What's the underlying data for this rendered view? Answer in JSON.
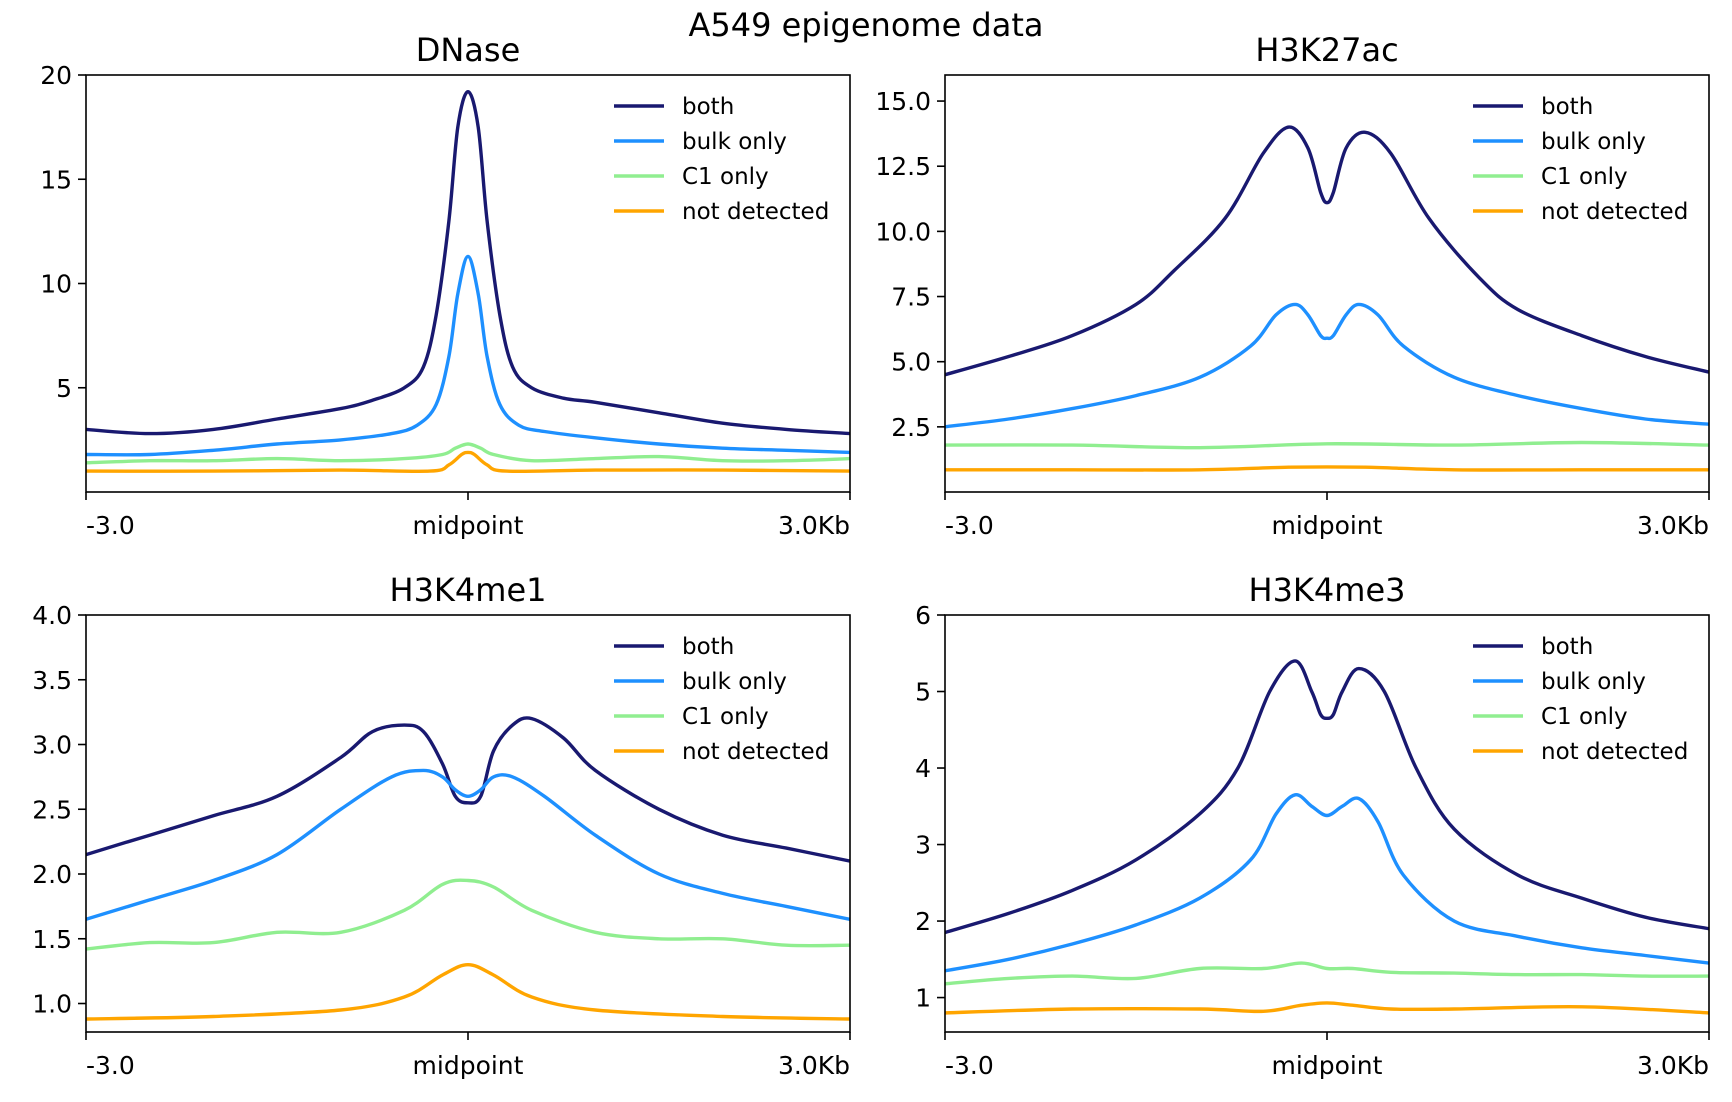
{
  "figure_title": "A549 epigenome data",
  "colors": {
    "both": "#191970",
    "bulk_only": "#1e90ff",
    "c1_only": "#90ee90",
    "not_detected": "#ffa500"
  },
  "chart_data": [
    {
      "type": "line",
      "title": "DNase",
      "xlabel": "",
      "ylabel": "",
      "xlim": [
        -3.0,
        3.0
      ],
      "ylim": [
        0,
        20
      ],
      "yticks": [
        5,
        10,
        15,
        20
      ],
      "ytick_labels": [
        "5",
        "10",
        "15",
        "20"
      ],
      "xticks": [
        -3.0,
        0,
        3.0
      ],
      "xtick_labels": [
        "-3.0",
        "midpoint",
        "3.0Kb"
      ],
      "grid": false,
      "legend_position": "top-right",
      "series": [
        {
          "name": "both",
          "color": "#191970",
          "x": [
            -3.0,
            -2.5,
            -2.0,
            -1.5,
            -1.0,
            -0.75,
            -0.5,
            -0.35,
            -0.25,
            -0.15,
            -0.08,
            0.0,
            0.08,
            0.15,
            0.25,
            0.35,
            0.5,
            0.75,
            1.0,
            1.5,
            2.0,
            2.5,
            3.0
          ],
          "y": [
            3.0,
            2.8,
            3.0,
            3.5,
            4.0,
            4.4,
            5.0,
            6.0,
            8.5,
            13.0,
            17.5,
            19.2,
            17.5,
            13.0,
            8.5,
            6.0,
            5.0,
            4.5,
            4.3,
            3.8,
            3.3,
            3.0,
            2.8
          ]
        },
        {
          "name": "bulk only",
          "color": "#1e90ff",
          "x": [
            -3.0,
            -2.5,
            -2.0,
            -1.5,
            -1.0,
            -0.6,
            -0.4,
            -0.25,
            -0.15,
            -0.08,
            0.0,
            0.08,
            0.15,
            0.25,
            0.4,
            0.6,
            1.0,
            1.5,
            2.0,
            2.5,
            3.0
          ],
          "y": [
            1.8,
            1.8,
            2.0,
            2.3,
            2.5,
            2.8,
            3.2,
            4.2,
            6.5,
            9.5,
            11.3,
            9.5,
            6.5,
            4.2,
            3.2,
            2.9,
            2.6,
            2.3,
            2.1,
            2.0,
            1.9
          ]
        },
        {
          "name": "C1 only",
          "color": "#90ee90",
          "x": [
            -3.0,
            -2.5,
            -2.0,
            -1.5,
            -1.0,
            -0.5,
            -0.2,
            -0.1,
            0.0,
            0.1,
            0.2,
            0.5,
            1.0,
            1.5,
            2.0,
            2.5,
            3.0
          ],
          "y": [
            1.4,
            1.5,
            1.5,
            1.6,
            1.5,
            1.6,
            1.8,
            2.1,
            2.3,
            2.1,
            1.8,
            1.5,
            1.6,
            1.7,
            1.5,
            1.5,
            1.6
          ]
        },
        {
          "name": "not detected",
          "color": "#ffa500",
          "x": [
            -3.0,
            -2.0,
            -1.0,
            -0.3,
            -0.15,
            -0.05,
            0.0,
            0.05,
            0.15,
            0.3,
            1.0,
            2.0,
            3.0
          ],
          "y": [
            1.0,
            1.0,
            1.05,
            1.0,
            1.3,
            1.8,
            1.9,
            1.8,
            1.3,
            1.0,
            1.05,
            1.05,
            1.0
          ]
        }
      ]
    },
    {
      "type": "line",
      "title": "H3K27ac",
      "xlabel": "",
      "ylabel": "",
      "xlim": [
        -3.0,
        3.0
      ],
      "ylim": [
        0,
        16.0
      ],
      "yticks": [
        2.5,
        5.0,
        7.5,
        10.0,
        12.5,
        15.0
      ],
      "ytick_labels": [
        "2.5",
        "5.0",
        "7.5",
        "10.0",
        "12.5",
        "15.0"
      ],
      "xticks": [
        -3.0,
        0,
        3.0
      ],
      "xtick_labels": [
        "-3.0",
        "midpoint",
        "3.0Kb"
      ],
      "grid": false,
      "legend_position": "top-right",
      "series": [
        {
          "name": "both",
          "color": "#191970",
          "x": [
            -3.0,
            -2.5,
            -2.0,
            -1.5,
            -1.2,
            -0.8,
            -0.5,
            -0.3,
            -0.15,
            -0.05,
            0.0,
            0.05,
            0.15,
            0.3,
            0.5,
            0.8,
            1.2,
            1.5,
            2.0,
            2.5,
            3.0
          ],
          "y": [
            4.5,
            5.2,
            6.0,
            7.2,
            8.5,
            10.5,
            13.0,
            14.0,
            13.2,
            11.5,
            11.1,
            11.5,
            13.2,
            13.8,
            13.0,
            10.5,
            8.2,
            7.0,
            6.0,
            5.2,
            4.6
          ]
        },
        {
          "name": "bulk only",
          "color": "#1e90ff",
          "x": [
            -3.0,
            -2.5,
            -2.0,
            -1.5,
            -1.0,
            -0.6,
            -0.4,
            -0.25,
            -0.15,
            -0.05,
            0.0,
            0.05,
            0.15,
            0.25,
            0.4,
            0.6,
            1.0,
            1.5,
            2.0,
            2.5,
            3.0
          ],
          "y": [
            2.5,
            2.8,
            3.2,
            3.7,
            4.4,
            5.6,
            6.8,
            7.2,
            6.8,
            6.0,
            5.9,
            6.0,
            6.8,
            7.2,
            6.8,
            5.6,
            4.4,
            3.7,
            3.2,
            2.8,
            2.6
          ]
        },
        {
          "name": "C1 only",
          "color": "#90ee90",
          "x": [
            -3.0,
            -2.0,
            -1.0,
            0.0,
            1.0,
            2.0,
            3.0
          ],
          "y": [
            1.8,
            1.8,
            1.7,
            1.85,
            1.8,
            1.9,
            1.8
          ]
        },
        {
          "name": "not detected",
          "color": "#ffa500",
          "x": [
            -3.0,
            -2.0,
            -1.0,
            -0.3,
            0.3,
            1.0,
            2.0,
            3.0
          ],
          "y": [
            0.85,
            0.85,
            0.85,
            0.95,
            0.95,
            0.85,
            0.85,
            0.85
          ]
        }
      ]
    },
    {
      "type": "line",
      "title": "H3K4me1",
      "xlabel": "",
      "ylabel": "",
      "xlim": [
        -3.0,
        3.0
      ],
      "ylim": [
        0.78,
        4.0
      ],
      "yticks": [
        1.0,
        1.5,
        2.0,
        2.5,
        3.0,
        3.5,
        4.0
      ],
      "ytick_labels": [
        "1.0",
        "1.5",
        "2.0",
        "2.5",
        "3.0",
        "3.5",
        "4.0"
      ],
      "xticks": [
        -3.0,
        0,
        3.0
      ],
      "xtick_labels": [
        "-3.0",
        "midpoint",
        "3.0Kb"
      ],
      "grid": false,
      "legend_position": "top-right",
      "series": [
        {
          "name": "both",
          "color": "#191970",
          "x": [
            -3.0,
            -2.5,
            -2.0,
            -1.5,
            -1.0,
            -0.75,
            -0.5,
            -0.35,
            -0.2,
            -0.1,
            0.0,
            0.1,
            0.2,
            0.35,
            0.5,
            0.75,
            1.0,
            1.5,
            2.0,
            2.5,
            3.0
          ],
          "y": [
            2.15,
            2.3,
            2.45,
            2.6,
            2.9,
            3.1,
            3.15,
            3.1,
            2.85,
            2.6,
            2.55,
            2.6,
            2.95,
            3.15,
            3.2,
            3.05,
            2.8,
            2.5,
            2.3,
            2.2,
            2.1
          ]
        },
        {
          "name": "bulk only",
          "color": "#1e90ff",
          "x": [
            -3.0,
            -2.5,
            -2.0,
            -1.5,
            -1.0,
            -0.6,
            -0.35,
            -0.2,
            -0.1,
            0.0,
            0.1,
            0.2,
            0.35,
            0.6,
            1.0,
            1.5,
            2.0,
            2.5,
            3.0
          ],
          "y": [
            1.65,
            1.8,
            1.95,
            2.15,
            2.5,
            2.75,
            2.8,
            2.75,
            2.65,
            2.6,
            2.65,
            2.75,
            2.75,
            2.6,
            2.3,
            2.0,
            1.85,
            1.75,
            1.65
          ]
        },
        {
          "name": "C1 only",
          "color": "#90ee90",
          "x": [
            -3.0,
            -2.5,
            -2.0,
            -1.5,
            -1.0,
            -0.5,
            -0.2,
            0.0,
            0.2,
            0.5,
            1.0,
            1.5,
            2.0,
            2.5,
            3.0
          ],
          "y": [
            1.42,
            1.47,
            1.47,
            1.55,
            1.55,
            1.72,
            1.92,
            1.95,
            1.9,
            1.72,
            1.55,
            1.5,
            1.5,
            1.45,
            1.45
          ]
        },
        {
          "name": "not detected",
          "color": "#ffa500",
          "x": [
            -3.0,
            -2.0,
            -1.0,
            -0.5,
            -0.2,
            0.0,
            0.2,
            0.5,
            1.0,
            2.0,
            3.0
          ],
          "y": [
            0.88,
            0.9,
            0.95,
            1.05,
            1.22,
            1.3,
            1.22,
            1.05,
            0.95,
            0.9,
            0.88
          ]
        }
      ]
    },
    {
      "type": "line",
      "title": "H3K4me3",
      "xlabel": "",
      "ylabel": "",
      "xlim": [
        -3.0,
        3.0
      ],
      "ylim": [
        0.55,
        6.0
      ],
      "yticks": [
        1,
        2,
        3,
        4,
        5,
        6
      ],
      "ytick_labels": [
        "1",
        "2",
        "3",
        "4",
        "5",
        "6"
      ],
      "xticks": [
        -3.0,
        0,
        3.0
      ],
      "xtick_labels": [
        "-3.0",
        "midpoint",
        "3.0Kb"
      ],
      "grid": false,
      "legend_position": "top-right",
      "series": [
        {
          "name": "both",
          "color": "#191970",
          "x": [
            -3.0,
            -2.5,
            -2.0,
            -1.5,
            -1.0,
            -0.7,
            -0.45,
            -0.25,
            -0.12,
            -0.05,
            0.0,
            0.05,
            0.12,
            0.25,
            0.45,
            0.7,
            1.0,
            1.5,
            2.0,
            2.5,
            3.0
          ],
          "y": [
            1.85,
            2.1,
            2.4,
            2.8,
            3.4,
            4.0,
            5.0,
            5.4,
            5.0,
            4.7,
            4.65,
            4.7,
            5.0,
            5.3,
            5.0,
            4.0,
            3.2,
            2.6,
            2.3,
            2.05,
            1.9
          ]
        },
        {
          "name": "bulk only",
          "color": "#1e90ff",
          "x": [
            -3.0,
            -2.5,
            -2.0,
            -1.5,
            -1.0,
            -0.6,
            -0.4,
            -0.25,
            -0.12,
            0.0,
            0.12,
            0.25,
            0.4,
            0.6,
            1.0,
            1.5,
            2.0,
            2.5,
            3.0
          ],
          "y": [
            1.35,
            1.5,
            1.7,
            1.95,
            2.3,
            2.8,
            3.4,
            3.65,
            3.5,
            3.38,
            3.5,
            3.6,
            3.3,
            2.6,
            2.0,
            1.8,
            1.65,
            1.55,
            1.45
          ]
        },
        {
          "name": "C1 only",
          "color": "#90ee90",
          "x": [
            -3.0,
            -2.5,
            -2.0,
            -1.5,
            -1.0,
            -0.5,
            -0.2,
            0.0,
            0.2,
            0.5,
            1.0,
            1.5,
            2.0,
            2.5,
            3.0
          ],
          "y": [
            1.18,
            1.25,
            1.28,
            1.25,
            1.38,
            1.38,
            1.45,
            1.38,
            1.38,
            1.33,
            1.32,
            1.3,
            1.3,
            1.28,
            1.28
          ]
        },
        {
          "name": "not detected",
          "color": "#ffa500",
          "x": [
            -3.0,
            -2.0,
            -1.0,
            -0.5,
            -0.2,
            0.0,
            0.2,
            0.5,
            1.0,
            2.0,
            3.0
          ],
          "y": [
            0.8,
            0.85,
            0.85,
            0.82,
            0.9,
            0.93,
            0.9,
            0.85,
            0.85,
            0.88,
            0.8
          ]
        }
      ]
    }
  ]
}
